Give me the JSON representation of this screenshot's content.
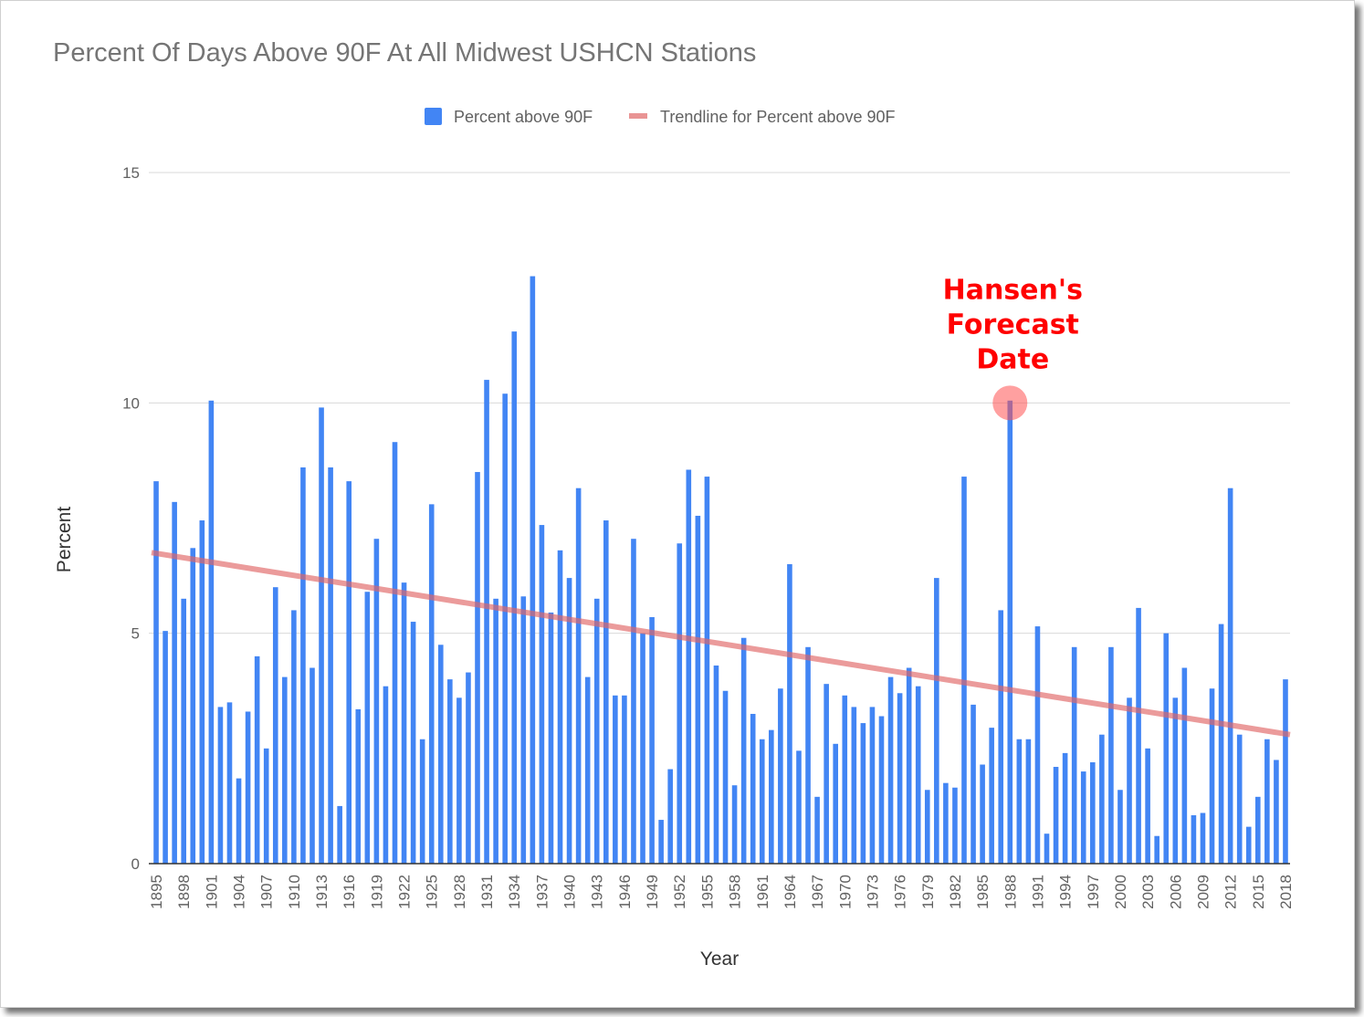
{
  "chart_data": {
    "type": "bar",
    "title": "Percent Of Days Above 90F At All Midwest USHCN Stations",
    "xlabel": "Year",
    "ylabel": "Percent",
    "ylim": [
      0,
      15
    ],
    "yticks": [
      0,
      5,
      10,
      15
    ],
    "grid": true,
    "legend_position": "top",
    "x": [
      1895,
      1896,
      1897,
      1898,
      1899,
      1900,
      1901,
      1902,
      1903,
      1904,
      1905,
      1906,
      1907,
      1908,
      1909,
      1910,
      1911,
      1912,
      1913,
      1914,
      1915,
      1916,
      1917,
      1918,
      1919,
      1920,
      1921,
      1922,
      1923,
      1924,
      1925,
      1926,
      1927,
      1928,
      1929,
      1930,
      1931,
      1932,
      1933,
      1934,
      1935,
      1936,
      1937,
      1938,
      1939,
      1940,
      1941,
      1942,
      1943,
      1944,
      1945,
      1946,
      1947,
      1948,
      1949,
      1950,
      1951,
      1952,
      1953,
      1954,
      1955,
      1956,
      1957,
      1958,
      1959,
      1960,
      1961,
      1962,
      1963,
      1964,
      1965,
      1966,
      1967,
      1968,
      1969,
      1970,
      1971,
      1972,
      1973,
      1974,
      1975,
      1976,
      1977,
      1978,
      1979,
      1980,
      1981,
      1982,
      1983,
      1984,
      1985,
      1986,
      1987,
      1988,
      1989,
      1990,
      1991,
      1992,
      1993,
      1994,
      1995,
      1996,
      1997,
      1998,
      1999,
      2000,
      2001,
      2002,
      2003,
      2004,
      2005,
      2006,
      2007,
      2008,
      2009,
      2010,
      2011,
      2012,
      2013,
      2014,
      2015,
      2016,
      2017,
      2018
    ],
    "x_tick_labels": [
      "1895",
      "1898",
      "1901",
      "1904",
      "1907",
      "1910",
      "1913",
      "1916",
      "1919",
      "1922",
      "1925",
      "1928",
      "1931",
      "1934",
      "1937",
      "1940",
      "1943",
      "1946",
      "1949",
      "1952",
      "1955",
      "1958",
      "1961",
      "1964",
      "1967",
      "1970",
      "1973",
      "1976",
      "1979",
      "1982",
      "1985",
      "1988",
      "1991",
      "1994",
      "1997",
      "2000",
      "2003",
      "2006",
      "2009",
      "2012",
      "2015",
      "2018"
    ],
    "series": [
      {
        "name": "Percent above 90F",
        "color": "#4285f4",
        "values": [
          8.3,
          5.05,
          7.85,
          5.75,
          6.85,
          7.45,
          10.05,
          3.4,
          3.5,
          1.85,
          3.3,
          4.5,
          2.5,
          6.0,
          4.05,
          5.5,
          8.6,
          4.25,
          9.9,
          8.6,
          1.25,
          8.3,
          3.35,
          5.9,
          7.05,
          3.85,
          9.15,
          6.1,
          5.25,
          2.7,
          7.8,
          4.75,
          4.0,
          3.6,
          4.15,
          8.5,
          10.5,
          5.75,
          10.2,
          11.55,
          5.8,
          12.75,
          7.35,
          5.45,
          6.8,
          6.2,
          8.15,
          4.05,
          5.75,
          7.45,
          3.65,
          3.65,
          7.05,
          5.0,
          5.35,
          0.95,
          2.05,
          6.95,
          8.55,
          7.55,
          8.4,
          4.3,
          3.75,
          1.7,
          4.9,
          3.25,
          2.7,
          2.9,
          3.8,
          6.5,
          2.45,
          4.7,
          1.45,
          3.9,
          2.6,
          3.65,
          3.4,
          3.05,
          3.4,
          3.2,
          4.05,
          3.7,
          4.25,
          3.85,
          1.6,
          6.2,
          1.75,
          1.65,
          8.4,
          3.45,
          2.15,
          2.95,
          5.5,
          10.05,
          2.7,
          2.7,
          5.15,
          0.65,
          2.1,
          2.4,
          4.7,
          2.0,
          2.2,
          2.8,
          4.7,
          1.6,
          3.6,
          5.55,
          2.5,
          0.6,
          5.0,
          3.6,
          4.25,
          1.05,
          1.1,
          3.8,
          5.2,
          8.15,
          2.8,
          0.8,
          1.45,
          2.7,
          2.25,
          4.0
        ]
      },
      {
        "name": "Trendline for Percent above 90F",
        "type": "line",
        "color": "#e06666",
        "x": [
          1895,
          2018
        ],
        "values": [
          6.75,
          2.8
        ]
      }
    ],
    "annotations": [
      {
        "text_lines": [
          "Hansen's",
          "Forecast",
          "Date"
        ],
        "x": 1988,
        "y": 10.0,
        "color": "#ff0000"
      }
    ]
  }
}
